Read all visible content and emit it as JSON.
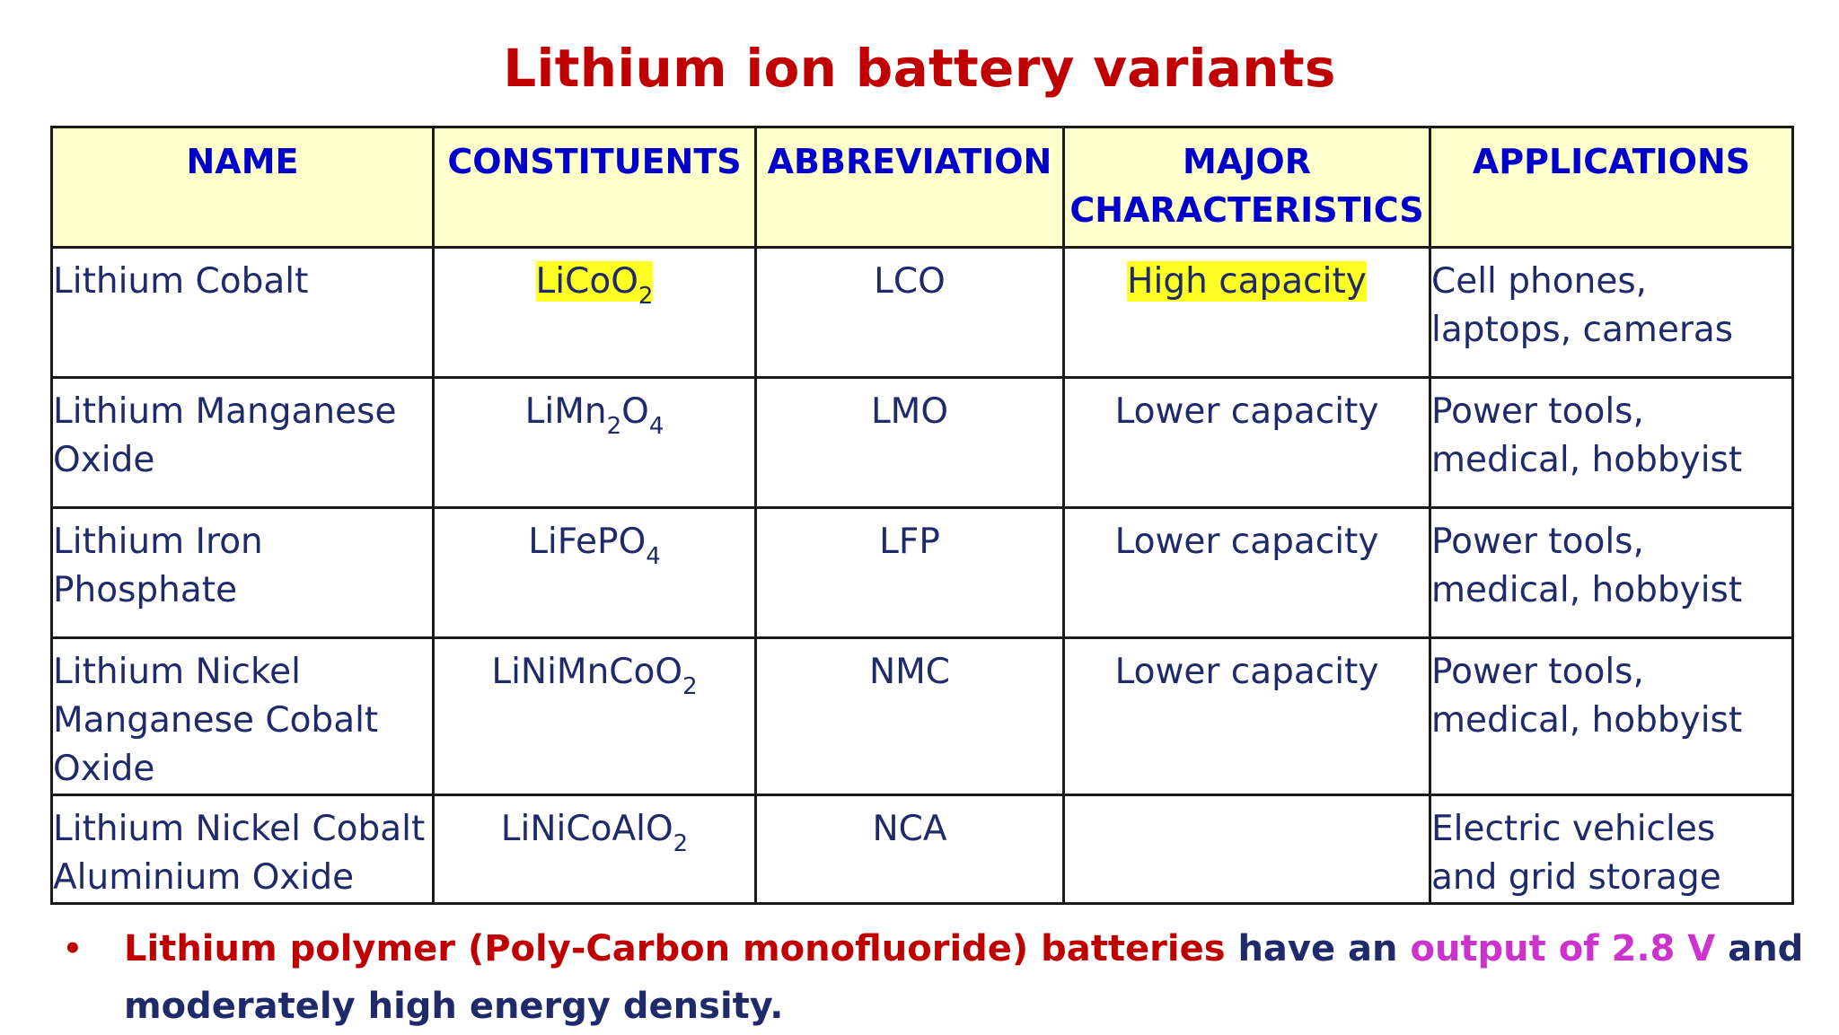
{
  "title": "Lithium ion battery variants",
  "table": {
    "headers": [
      "NAME",
      "CONSTITUENTS",
      "ABBREVIATION",
      "MAJOR CHARACTERISTICS",
      "APPLICATIONS"
    ],
    "rows": [
      {
        "name": "Lithium Cobalt",
        "formula": {
          "main": "LiCoO",
          "sub1": "2",
          "mid": "",
          "sub2": ""
        },
        "abbr": "LCO",
        "characteristics": "High capacity",
        "applications": "Cell phones, laptops, cameras"
      },
      {
        "name": "Lithium Manganese Oxide",
        "formula": {
          "main": "LiMn",
          "sub1": "2",
          "mid": "O",
          "sub2": "4"
        },
        "abbr": "LMO",
        "characteristics": "Lower capacity",
        "applications": "Power tools, medical, hobbyist"
      },
      {
        "name": "Lithium Iron Phosphate",
        "formula": {
          "main": "LiFePO",
          "sub1": "4",
          "mid": "",
          "sub2": ""
        },
        "abbr": "LFP",
        "characteristics": "Lower capacity",
        "applications": "Power tools, medical, hobbyist"
      },
      {
        "name": "Lithium Nickel Manganese Cobalt Oxide",
        "formula": {
          "main": "LiNiMnCoO",
          "sub1": "2",
          "mid": "",
          "sub2": ""
        },
        "abbr": "NMC",
        "characteristics": "Lower capacity",
        "applications": "Power tools, medical, hobbyist"
      },
      {
        "name": "Lithium Nickel Cobalt Aluminium Oxide",
        "formula": {
          "main": "LiNiCoAlO",
          "sub1": "2",
          "mid": "",
          "sub2": ""
        },
        "abbr": "NCA",
        "characteristics": "",
        "applications": "Electric vehicles and grid storage"
      }
    ]
  },
  "footnote": {
    "bullet": "•",
    "part_red": "Lithium polymer (Poly-Carbon monofluoride) batteries",
    "part_navy1": "have an",
    "part_magenta": "output of 2.8 V",
    "part_navy2": "and moderately high energy density."
  },
  "colors": {
    "title": "#c00000",
    "header_bg": "#ffffcc",
    "header_text": "#0000cc",
    "body_text": "#1f2a6b",
    "highlight": "#ffff22",
    "accent_magenta": "#cc33cc"
  }
}
